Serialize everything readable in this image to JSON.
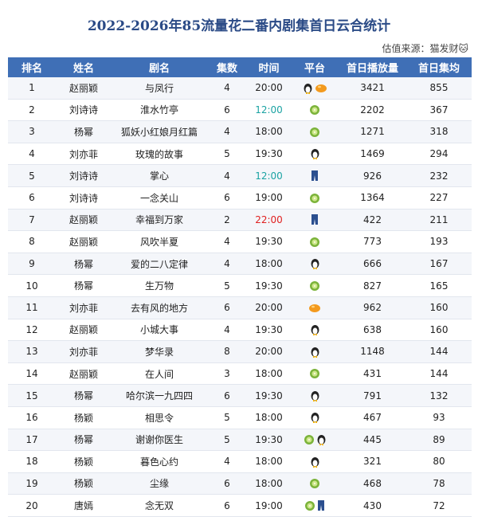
{
  "title": "2022-2026年85流量花二番内剧集首日云合统计",
  "source": "估值来源：猫发财🐱",
  "table": {
    "header": [
      "排名",
      "姓名",
      "剧名",
      "集数",
      "时间",
      "平台",
      "首日播放量",
      "首日集均"
    ],
    "rows": [
      {
        "rank": 1,
        "name": "赵丽颖",
        "drama": "与凤行",
        "episodes": 4,
        "time": "20:00",
        "views": 3421,
        "avg": 855
      },
      {
        "rank": 2,
        "name": "刘诗诗",
        "drama": "淮水竹亭",
        "episodes": 6,
        "time": "12:00",
        "views": 2202,
        "avg": 367
      },
      {
        "rank": 3,
        "name": "杨幂",
        "drama": "狐妖小红娘月红篇",
        "episodes": 4,
        "time": "18:00",
        "views": 1271,
        "avg": 318
      },
      {
        "rank": 4,
        "name": "刘亦菲",
        "drama": "玫瑰的故事",
        "episodes": 5,
        "time": "19:30",
        "views": 1469,
        "avg": 294
      },
      {
        "rank": 5,
        "name": "刘诗诗",
        "drama": "掌心",
        "episodes": 4,
        "time": "12:00",
        "views": 926,
        "avg": 232
      },
      {
        "rank": 6,
        "name": "刘诗诗",
        "drama": "一念关山",
        "episodes": 6,
        "time": "19:00",
        "views": 1364,
        "avg": 227
      },
      {
        "rank": 7,
        "name": "赵丽颖",
        "drama": "幸福到万家",
        "episodes": 2,
        "time": "22:00",
        "views": 422,
        "avg": 211
      },
      {
        "rank": 8,
        "name": "赵丽颖",
        "drama": "风吹半夏",
        "episodes": 4,
        "time": "19:30",
        "views": 773,
        "avg": 193
      },
      {
        "rank": 9,
        "name": "杨幂",
        "drama": "爱的二八定律",
        "episodes": 4,
        "time": "18:00",
        "views": 666,
        "avg": 167
      },
      {
        "rank": 10,
        "name": "杨幂",
        "drama": "生万物",
        "episodes": 5,
        "time": "19:30",
        "views": 827,
        "avg": 165
      },
      {
        "rank": 11,
        "name": "刘亦菲",
        "drama": "去有风的地方",
        "episodes": 6,
        "time": "20:00",
        "views": 962,
        "avg": 160
      },
      {
        "rank": 12,
        "name": "赵丽颖",
        "drama": "小城大事",
        "episodes": 4,
        "time": "19:30",
        "views": 638,
        "avg": 160
      },
      {
        "rank": 13,
        "name": "刘亦菲",
        "drama": "梦华录",
        "episodes": 8,
        "time": "20:00",
        "views": 1148,
        "avg": 144
      },
      {
        "rank": 14,
        "name": "赵丽颖",
        "drama": "在人间",
        "episodes": 3,
        "time": "18:00",
        "views": 431,
        "avg": 144
      },
      {
        "rank": 15,
        "name": "杨幂",
        "drama": "哈尔滨一九四四",
        "episodes": 6,
        "time": "19:30",
        "views": 791,
        "avg": 132
      },
      {
        "rank": 16,
        "name": "杨颖",
        "drama": "相思令",
        "episodes": 5,
        "time": "18:00",
        "views": 467,
        "avg": 93
      },
      {
        "rank": 17,
        "name": "杨幂",
        "drama": "谢谢你医生",
        "episodes": 5,
        "time": "19:30",
        "views": 445,
        "avg": 89
      },
      {
        "rank": 18,
        "name": "杨颖",
        "drama": "暮色心约",
        "episodes": 4,
        "time": "18:00",
        "views": 321,
        "avg": 80
      },
      {
        "rank": 19,
        "name": "杨颖",
        "drama": "尘缘",
        "episodes": 6,
        "time": "18:00",
        "views": 468,
        "avg": 78
      },
      {
        "rank": 20,
        "name": "唐嫣",
        "drama": "念无双",
        "episodes": 6,
        "time": "19:00",
        "views": 430,
        "avg": 72
      }
    ]
  }
}
